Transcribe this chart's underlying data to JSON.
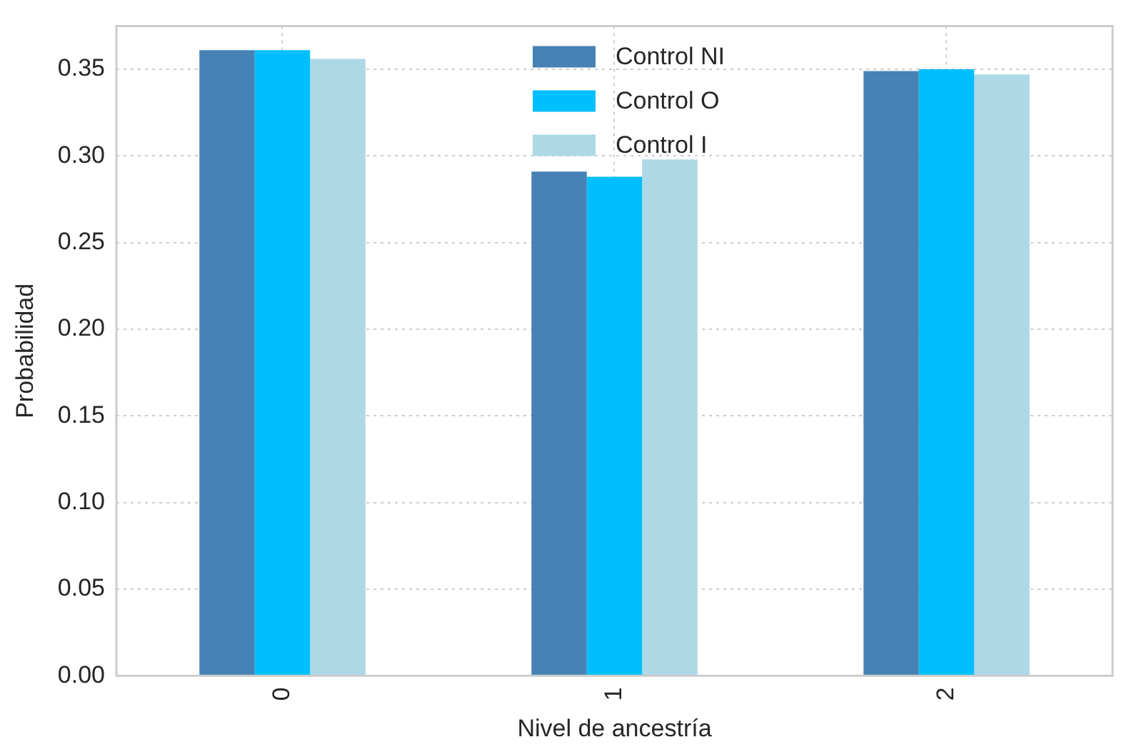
{
  "chart_data": {
    "type": "bar",
    "xlabel": "Nivel de ancestría",
    "ylabel": "Probabilidad",
    "categories": [
      "0",
      "1",
      "2"
    ],
    "series": [
      {
        "name": "Control NI",
        "color": "#4682b4",
        "values": [
          0.361,
          0.291,
          0.349
        ]
      },
      {
        "name": "Control O",
        "color": "#00bfff",
        "values": [
          0.361,
          0.288,
          0.35
        ]
      },
      {
        "name": "Control I",
        "color": "#add8e6",
        "values": [
          0.356,
          0.298,
          0.347
        ]
      }
    ],
    "ylim": [
      0,
      0.375
    ],
    "yticks": [
      {
        "value": 0,
        "label": "0.00"
      },
      {
        "value": 0.05,
        "label": "0.05"
      },
      {
        "value": 0.1,
        "label": "0.10"
      },
      {
        "value": 0.15,
        "label": "0.15"
      },
      {
        "value": 0.2,
        "label": "0.20"
      },
      {
        "value": 0.25,
        "label": "0.25"
      },
      {
        "value": 0.3,
        "label": "0.30"
      },
      {
        "value": 0.35,
        "label": "0.35"
      }
    ],
    "grid": true,
    "legend": "top"
  }
}
